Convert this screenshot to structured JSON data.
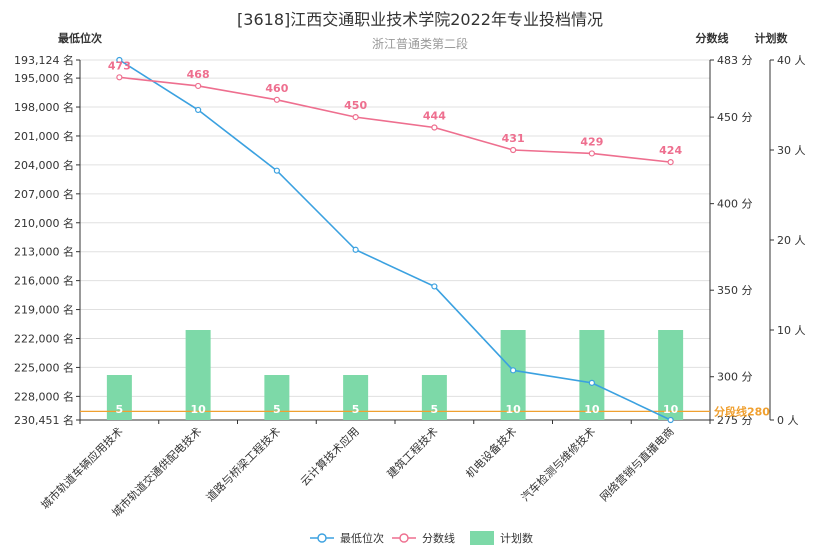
{
  "chart_data": {
    "type": "bar+line",
    "title": "[3618]江西交通职业技术学院2022年专业投档情况",
    "subtitle": "浙江普通类第二段",
    "categories": [
      "城市轨道车辆应用技术",
      "城市轨道交通供配电技术",
      "道路与桥梁工程技术",
      "云计算技术应用",
      "建筑工程技术",
      "机电设备技术",
      "汽车检测与维修技术",
      "网络营销与直播电商"
    ],
    "series": [
      {
        "name": "最低位次",
        "type": "line",
        "axis": "rank",
        "color": "#3ba1e0",
        "values": [
          193124,
          198300,
          204600,
          212800,
          216600,
          225300,
          226600,
          230451
        ]
      },
      {
        "name": "分数线",
        "type": "line",
        "axis": "score",
        "color": "#ee6f8f",
        "values": [
          473,
          468,
          460,
          450,
          444,
          431,
          429,
          424
        ],
        "labels": [
          "473",
          "468",
          "460",
          "450",
          "444",
          "431",
          "429",
          "424"
        ]
      },
      {
        "name": "计划数",
        "type": "bar",
        "axis": "plan",
        "color": "#7dd9a8",
        "values": [
          5,
          10,
          5,
          5,
          5,
          10,
          10,
          10
        ],
        "labels": [
          "5",
          "10",
          "5",
          "5",
          "5",
          "10",
          "10",
          "10"
        ]
      }
    ],
    "axes": {
      "rank": {
        "name": "最低位次",
        "min": 193124,
        "max": 230451,
        "inverse": true,
        "ticks": [
          193124,
          195000,
          198000,
          201000,
          204000,
          207000,
          210000,
          213000,
          216000,
          219000,
          222000,
          225000,
          228000,
          230451
        ],
        "tick_labels": [
          "193,124 名",
          "195,000 名",
          "198,000 名",
          "201,000 名",
          "204,000 名",
          "207,000 名",
          "210,000 名",
          "213,000 名",
          "216,000 名",
          "219,000 名",
          "222,000 名",
          "225,000 名",
          "228,000 名",
          "230,451 名"
        ]
      },
      "score": {
        "name": "分数线",
        "min": 275,
        "max": 483,
        "ticks": [
          275,
          300,
          350,
          400,
          450,
          483
        ],
        "tick_labels": [
          "275 分",
          "300 分",
          "350 分",
          "400 分",
          "450 分",
          "483 分"
        ]
      },
      "plan": {
        "name": "计划数",
        "min": 0,
        "max": 40,
        "ticks": [
          0,
          10,
          20,
          30,
          40
        ],
        "tick_labels": [
          "0 人",
          "10 人",
          "20 人",
          "30 人",
          "40 人"
        ]
      }
    },
    "markline": {
      "axis": "score",
      "value": 280,
      "label": "分段线280",
      "color": "#f0a030"
    },
    "legend": {
      "position": "bottom",
      "items": [
        "最低位次",
        "分数线",
        "计划数"
      ]
    },
    "grid": true
  }
}
